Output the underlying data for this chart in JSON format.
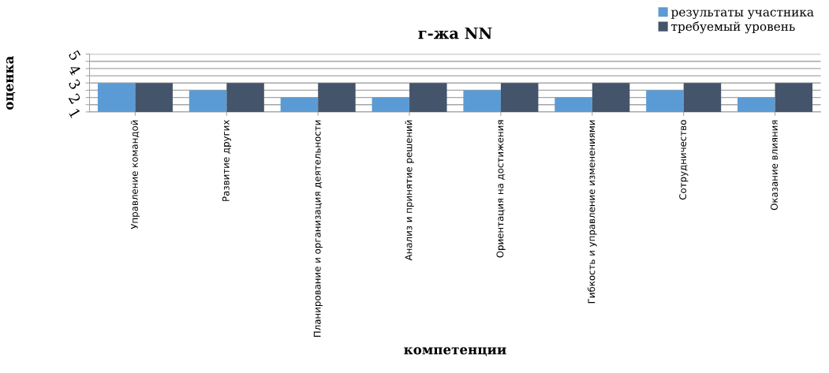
{
  "chart_data": {
    "type": "bar",
    "title": "г-жа NN",
    "xlabel": "компетенции",
    "ylabel": "оценка",
    "categories": [
      "Управление командой",
      "Развитие других",
      "Планирование и организация деятельности",
      "Анализ и принятие решений",
      "Ориентация на достижения",
      "Гибкость и управление изменениями",
      "Сотрудничество",
      "Оказание влияния"
    ],
    "series": [
      {
        "name": "результаты участника",
        "color": "#5b9bd5",
        "values": [
          3,
          2.5,
          2,
          2,
          2.5,
          2,
          2.5,
          2
        ]
      },
      {
        "name": "требуемый уровень",
        "color": "#44546a",
        "values": [
          3,
          3,
          3,
          3,
          3,
          3,
          3,
          3
        ]
      }
    ],
    "ylim": [
      1,
      5
    ],
    "yticks": [
      1,
      {
        "value": 1.5,
        "label": null
      },
      2,
      {
        "value": 2.5,
        "label": null
      },
      3,
      {
        "value": 3.5,
        "label": null
      },
      4,
      {
        "value": 4.5,
        "label": null
      },
      5
    ],
    "grid": "y",
    "legend": "top right"
  }
}
